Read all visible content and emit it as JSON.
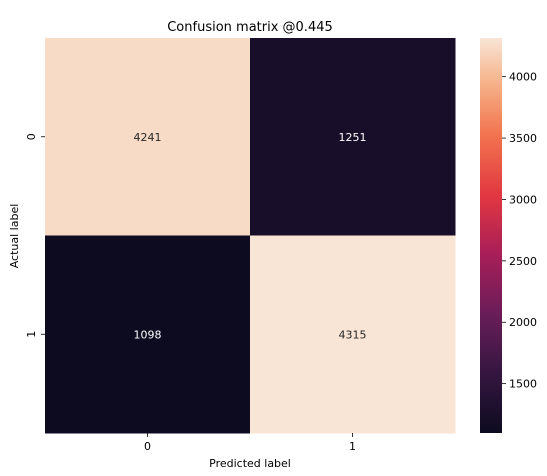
{
  "chart_data": {
    "type": "heatmap",
    "title": "Confusion matrix @0.445",
    "xlabel": "Predicted label",
    "ylabel": "Actual label",
    "x_categories": [
      "0",
      "1"
    ],
    "y_categories": [
      "0",
      "1"
    ],
    "values": [
      [
        4241,
        1251
      ],
      [
        1098,
        4315
      ]
    ],
    "colorbar": {
      "min": 1098,
      "max": 4315,
      "ticks": [
        1500,
        2000,
        2500,
        3000,
        3500,
        4000
      ]
    },
    "colormap": "rocket",
    "colors": {
      "low": "#0d0b1f",
      "high": "#f8e5d6"
    }
  }
}
